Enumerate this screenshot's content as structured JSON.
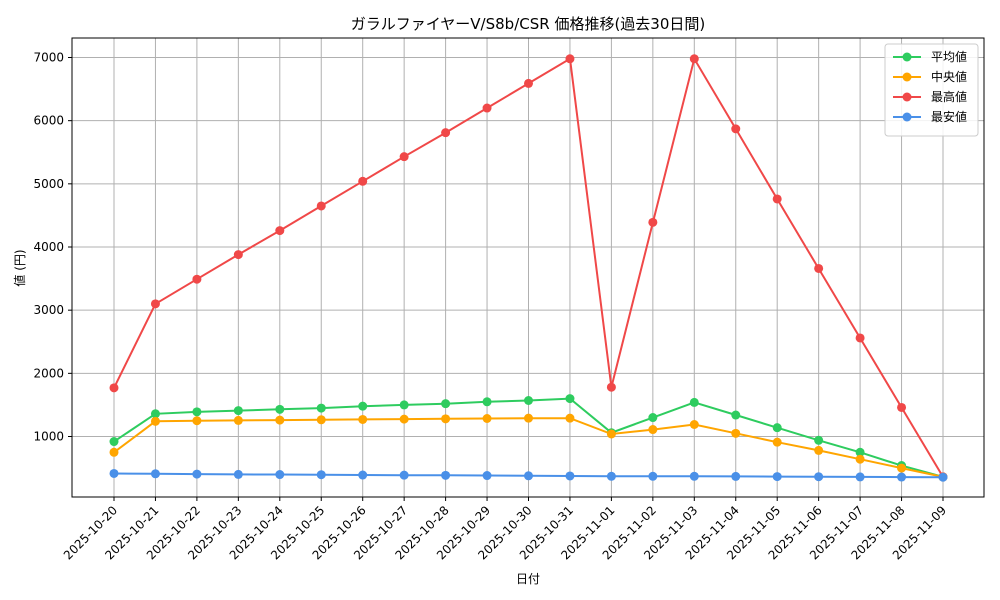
{
  "chart_data": {
    "type": "line",
    "title": "ガラルファイヤーV/S8b/CSR 価格推移(過去30日間)",
    "xlabel": "日付",
    "ylabel": "値 (円)",
    "ylim": [
      0,
      7300
    ],
    "yticks": [
      1000,
      2000,
      3000,
      4000,
      5000,
      6000,
      7000
    ],
    "grid": true,
    "legend_position": "top-right",
    "categories": [
      "2025-10-20",
      "2025-10-21",
      "2025-10-22",
      "2025-10-23",
      "2025-10-24",
      "2025-10-25",
      "2025-10-26",
      "2025-10-27",
      "2025-10-28",
      "2025-10-29",
      "2025-10-30",
      "2025-10-31",
      "2025-11-01",
      "2025-11-02",
      "2025-11-03",
      "2025-11-04",
      "2025-11-05",
      "2025-11-06",
      "2025-11-07",
      "2025-11-08",
      "2025-11-09"
    ],
    "series": [
      {
        "name": "平均値",
        "color": "#2ecc5f",
        "values": [
          920,
          1360,
          1390,
          1410,
          1430,
          1450,
          1480,
          1500,
          1520,
          1550,
          1570,
          1600,
          1060,
          1300,
          1540,
          1340,
          1140,
          940,
          750,
          540,
          360
        ]
      },
      {
        "name": "中央値",
        "color": "#ffa500",
        "values": [
          750,
          1240,
          1250,
          1255,
          1260,
          1265,
          1270,
          1275,
          1280,
          1285,
          1290,
          1290,
          1040,
          1110,
          1190,
          1050,
          910,
          780,
          640,
          500,
          360
        ]
      },
      {
        "name": "最高値",
        "color": "#f04848",
        "values": [
          1770,
          3100,
          3490,
          3880,
          4260,
          4650,
          5040,
          5430,
          5810,
          6200,
          6590,
          6980,
          1780,
          4390,
          6980,
          5870,
          4760,
          3660,
          2560,
          1460,
          360
        ]
      },
      {
        "name": "最安値",
        "color": "#4a90e8",
        "values": [
          415,
          410,
          405,
          400,
          398,
          395,
          390,
          388,
          385,
          382,
          378,
          375,
          370,
          370,
          370,
          368,
          365,
          363,
          360,
          358,
          355
        ]
      }
    ]
  }
}
